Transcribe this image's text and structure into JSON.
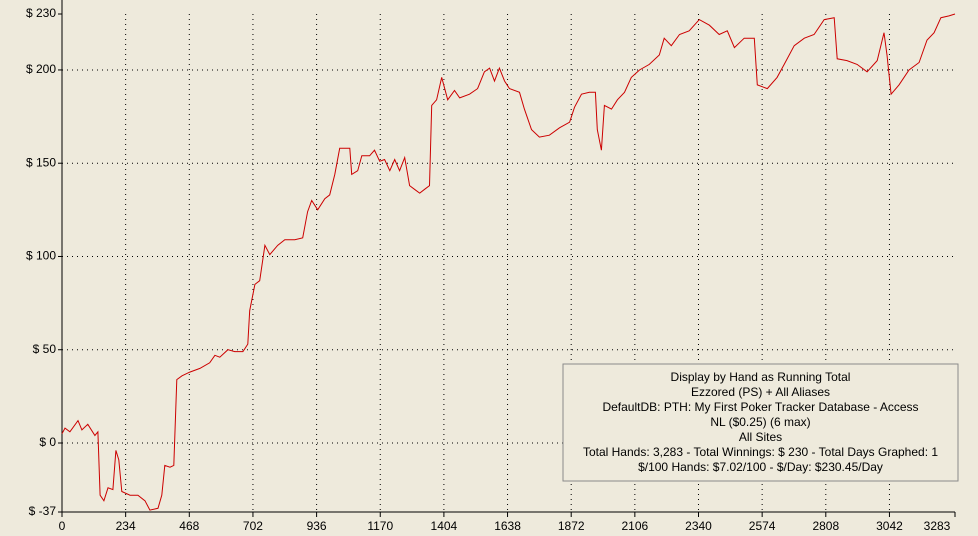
{
  "chart_data": {
    "type": "line",
    "x": [
      0,
      11,
      29,
      59,
      73,
      95,
      121,
      132,
      140,
      154,
      169,
      187,
      198,
      209,
      220,
      250,
      279,
      305,
      323,
      353,
      367,
      378,
      397,
      411,
      422,
      441,
      470,
      507,
      543,
      562,
      580,
      610,
      635,
      665,
      683,
      690,
      709,
      727,
      746,
      764,
      793,
      819,
      856,
      885,
      903,
      918,
      940,
      966,
      984,
      1003,
      1021,
      1039,
      1058,
      1065,
      1087,
      1102,
      1131,
      1149,
      1168,
      1186,
      1205,
      1223,
      1241,
      1260,
      1278,
      1296,
      1315,
      1333,
      1351,
      1359,
      1377,
      1396,
      1418,
      1443,
      1462,
      1498,
      1528,
      1553,
      1572,
      1590,
      1608,
      1627,
      1645,
      1682,
      1700,
      1726,
      1755,
      1792,
      1829,
      1866,
      1884,
      1910,
      1939,
      1961,
      1968,
      1983,
      1994,
      2020,
      2042,
      2068,
      2093,
      2123,
      2159,
      2196,
      2214,
      2240,
      2270,
      2306,
      2343,
      2380,
      2416,
      2446,
      2472,
      2508,
      2545,
      2556,
      2593,
      2629,
      2655,
      2692,
      2729,
      2765,
      2802,
      2839,
      2850,
      2886,
      2923,
      2960,
      2997,
      3022,
      3033,
      3048,
      3077,
      3114,
      3151,
      3180,
      3206,
      3231,
      3261,
      3283
    ],
    "series": [
      {
        "color": "#cc0000",
        "values": [
          5,
          8,
          6,
          12,
          7,
          10,
          4,
          6,
          -28,
          -31,
          -24,
          -25,
          -4,
          -9,
          -26,
          -28,
          -28,
          -31,
          -36,
          -35,
          -28,
          -12,
          -13,
          -12,
          34,
          36,
          38,
          40,
          43,
          47,
          46,
          50,
          49,
          49,
          53,
          71,
          85,
          87,
          106,
          101,
          106,
          109,
          109,
          110,
          124,
          130,
          125,
          131,
          133,
          144,
          158,
          158,
          158,
          144,
          146,
          154,
          154,
          157,
          151,
          152,
          146,
          152,
          146,
          153,
          138,
          136,
          134,
          136,
          138,
          181,
          184,
          196,
          184,
          189,
          185,
          187,
          190,
          199,
          201,
          194,
          201,
          194,
          190,
          188,
          179,
          168,
          164,
          165,
          169,
          172,
          180,
          187,
          188,
          188,
          168,
          157,
          181,
          179,
          184,
          188,
          196,
          200,
          203,
          208,
          217,
          213,
          219,
          221,
          227,
          224,
          219,
          221,
          212,
          217,
          217,
          192,
          190,
          196,
          203,
          213,
          217,
          219,
          227,
          228,
          206,
          205,
          203,
          199,
          205,
          220,
          208,
          187,
          192,
          200,
          204,
          216,
          220,
          228,
          229,
          230
        ]
      }
    ],
    "xlim": [
      0,
      3283
    ],
    "ylim": [
      -37,
      230
    ],
    "xticks": [
      0,
      234,
      468,
      702,
      936,
      1170,
      1404,
      1638,
      1872,
      2106,
      2340,
      2574,
      2808,
      3042,
      3283
    ],
    "yticks": [
      {
        "value": -37,
        "label": "$ -37"
      },
      {
        "value": 0,
        "label": "$ 0"
      },
      {
        "value": 50,
        "label": "$ 50"
      },
      {
        "value": 100,
        "label": "$ 100"
      },
      {
        "value": 150,
        "label": "$ 150"
      },
      {
        "value": 200,
        "label": "$ 200"
      },
      {
        "value": 230,
        "label": "$ 230"
      }
    ],
    "grid": true,
    "annotations": [
      "Display by Hand as Running Total",
      "Ezzored (PS) + All Aliases",
      "DefaultDB: PTH: My First Poker Tracker Database - Access",
      "NL ($0.25) (6 max)",
      "All Sites",
      "Total Hands: 3,283 - Total Winnings: $ 230 - Total Days Graphed: 1",
      "$/100 Hands: $7.02/100 - $/Day: $230.45/Day"
    ]
  }
}
